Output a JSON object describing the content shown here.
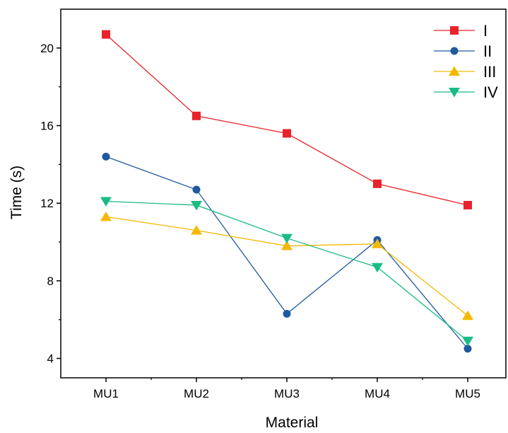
{
  "chart_data": {
    "type": "line",
    "categories": [
      "MU1",
      "MU2",
      "MU3",
      "MU4",
      "MU5"
    ],
    "xlabel": "Material",
    "ylabel": "Time (s)",
    "ylim": [
      3,
      22
    ],
    "yticks": [
      4,
      8,
      12,
      16,
      20
    ],
    "grid": false,
    "legend_position": "top-right",
    "series": [
      {
        "name": "I",
        "values": [
          20.7,
          16.5,
          15.6,
          13.0,
          11.9
        ],
        "color": "#e8222b",
        "marker": "square"
      },
      {
        "name": "II",
        "values": [
          14.4,
          12.7,
          6.3,
          10.1,
          4.5
        ],
        "color": "#1f5aa0",
        "marker": "circle"
      },
      {
        "name": "III",
        "values": [
          11.3,
          10.6,
          9.8,
          9.9,
          6.2
        ],
        "color": "#f5b800",
        "marker": "triangle-up"
      },
      {
        "name": "IV",
        "values": [
          12.1,
          11.9,
          10.2,
          8.7,
          4.9
        ],
        "color": "#1abc84",
        "marker": "triangle-down"
      }
    ]
  }
}
